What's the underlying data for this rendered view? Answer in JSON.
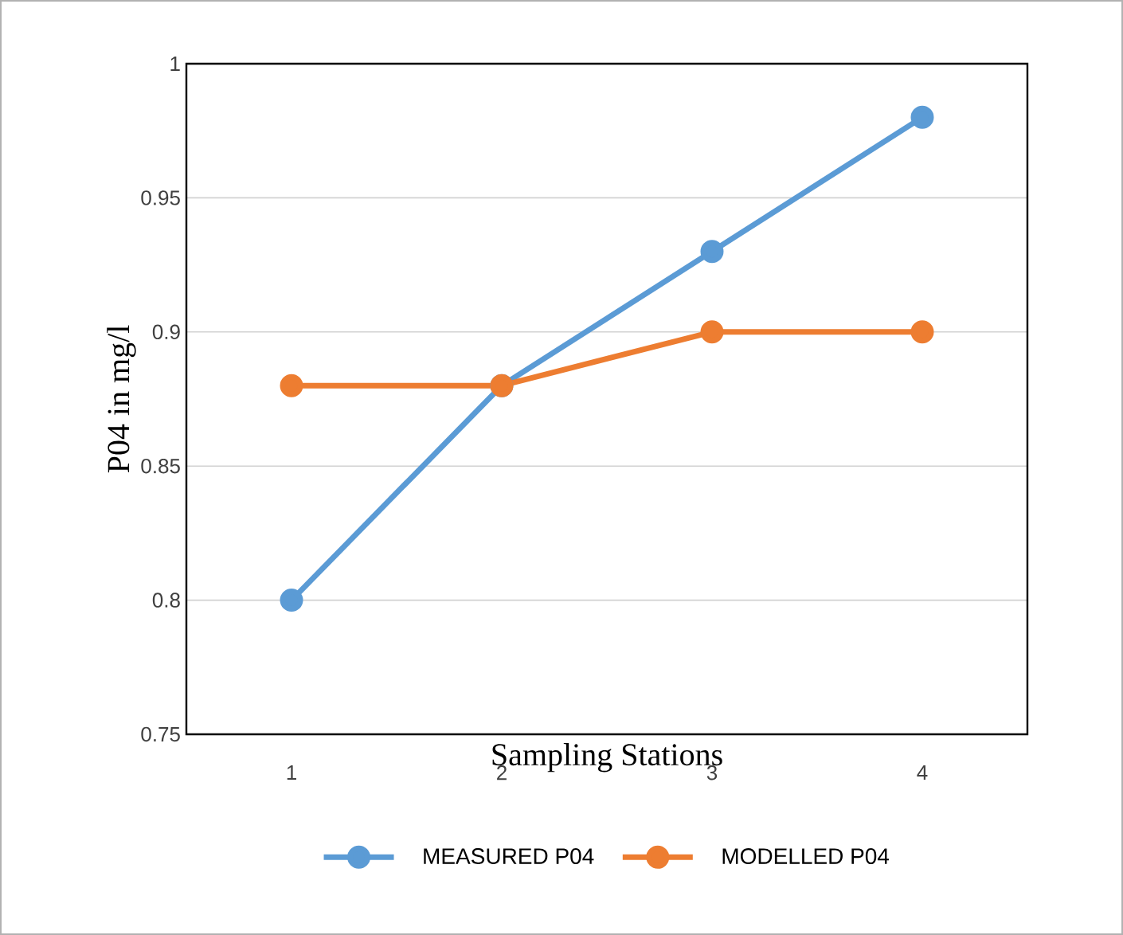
{
  "chart_data": {
    "type": "line",
    "xlabel": "Sampling Stations",
    "ylabel": "P04 in mg/l",
    "categories": [
      "1",
      "2",
      "3",
      "4"
    ],
    "series": [
      {
        "name": "MEASURED P04",
        "color": "#5b9bd5",
        "values": [
          0.8,
          0.88,
          0.93,
          0.98
        ]
      },
      {
        "name": "MODELLED P04",
        "color": "#ed7d31",
        "values": [
          0.88,
          0.88,
          0.9,
          0.9
        ]
      }
    ],
    "ylim": [
      0.75,
      1
    ],
    "yticks": [
      0.75,
      0.8,
      0.85,
      0.9,
      0.95,
      1
    ],
    "grid": "y",
    "legend": "bottom",
    "marker": "circle",
    "line_style": "solid"
  }
}
